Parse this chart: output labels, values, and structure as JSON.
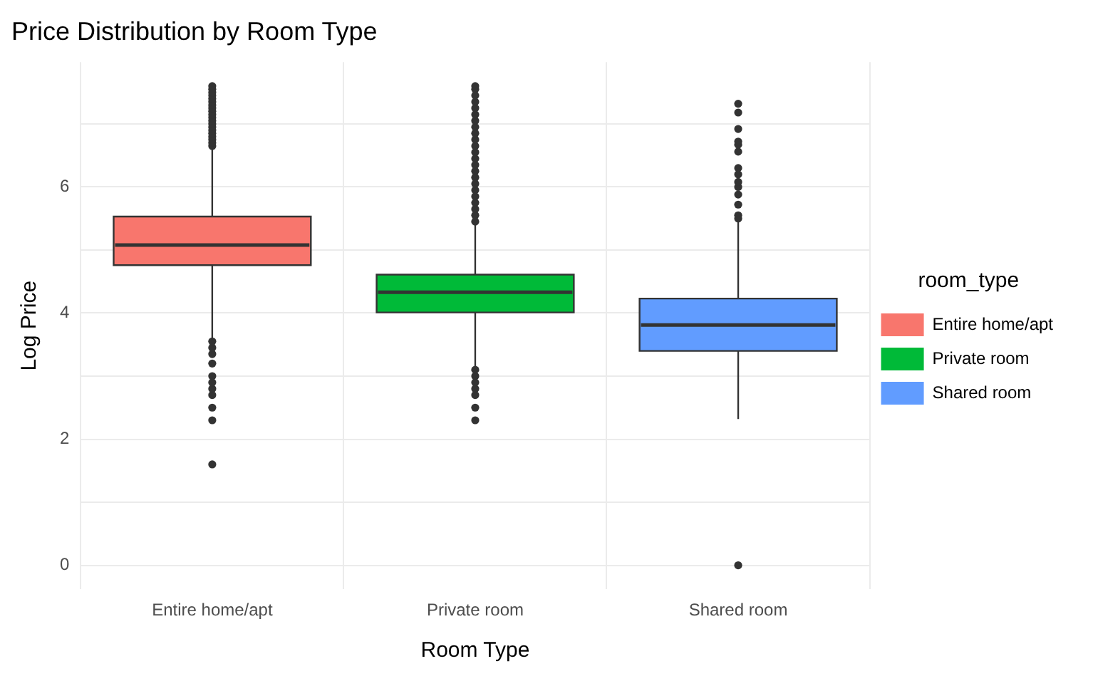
{
  "chart_data": {
    "type": "box",
    "title": "Price Distribution by Room Type",
    "xlabel": "Room Type",
    "ylabel": "Log Price",
    "legend_title": "room_type",
    "categories": [
      "Entire home/apt",
      "Private room",
      "Shared room"
    ],
    "series": [
      {
        "name": "Entire home/apt",
        "color": "#f8766d",
        "boxes": [
          {
            "low": 3.6,
            "q1": 4.76,
            "median": 5.08,
            "q3": 5.53,
            "high": 6.63,
            "outliers": [
              1.6,
              2.3,
              2.5,
              2.7,
              2.8,
              2.9,
              3.0,
              3.2,
              3.35,
              3.45,
              3.55,
              6.65,
              6.7,
              6.75,
              6.8,
              6.85,
              6.9,
              6.95,
              7.0,
              7.05,
              7.1,
              7.15,
              7.2,
              7.25,
              7.3,
              7.35,
              7.4,
              7.45,
              7.5,
              7.55,
              7.6
            ]
          },
          null,
          null
        ]
      },
      {
        "name": "Private room",
        "color": "#00ba38",
        "boxes": [
          null,
          {
            "low": 3.13,
            "q1": 4.01,
            "median": 4.33,
            "q3": 4.61,
            "high": 5.44,
            "outliers": [
              2.3,
              2.5,
              2.7,
              2.8,
              2.9,
              3.0,
              3.1,
              5.45,
              5.55,
              5.65,
              5.75,
              5.85,
              5.95,
              6.05,
              6.15,
              6.25,
              6.35,
              6.45,
              6.55,
              6.65,
              6.75,
              6.85,
              6.95,
              7.05,
              7.15,
              7.25,
              7.35,
              7.45,
              7.55,
              7.6
            ]
          },
          null
        ]
      },
      {
        "name": "Shared room",
        "color": "#619cff",
        "boxes": [
          null,
          null,
          {
            "low": 2.32,
            "q1": 3.4,
            "median": 3.81,
            "q3": 4.23,
            "high": 5.44,
            "outliers": [
              0,
              5.5,
              5.55,
              5.72,
              5.88,
              6.0,
              6.08,
              6.2,
              6.3,
              6.56,
              6.67,
              6.72,
              6.92,
              7.18,
              7.32
            ]
          }
        ]
      }
    ],
    "ylim": [
      -0.38,
      7.98
    ],
    "yticks": [
      0,
      {
        "value": 1,
        "label": null
      },
      2,
      {
        "value": 3,
        "label": null
      },
      4,
      {
        "value": 5,
        "label": null
      },
      6,
      {
        "value": 7,
        "label": null
      }
    ],
    "grid": true,
    "legend": "right"
  }
}
